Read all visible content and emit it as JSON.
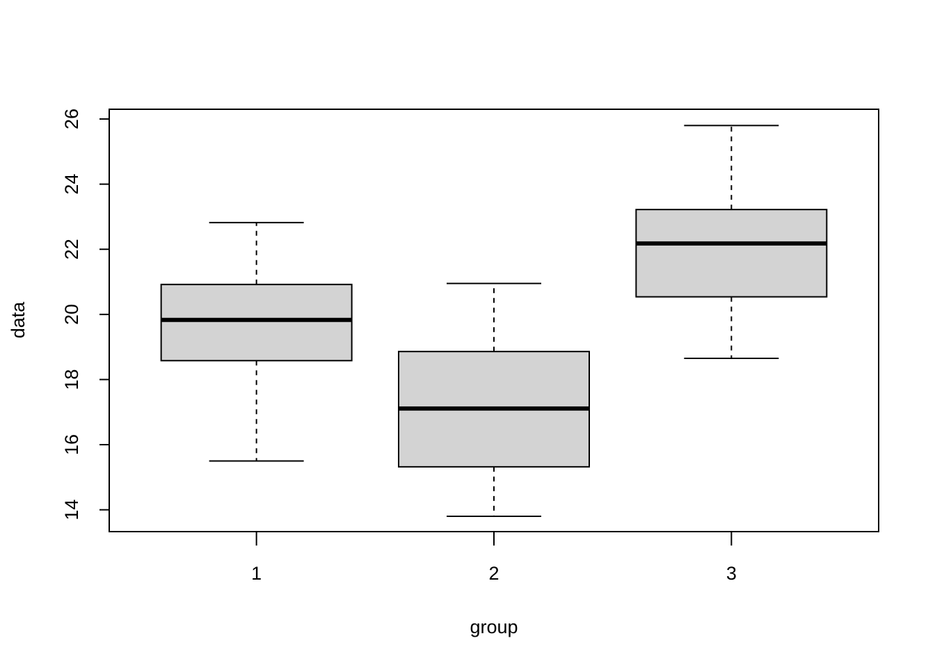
{
  "chart_data": {
    "type": "boxplot",
    "title": "",
    "xlabel": "group",
    "ylabel": "data",
    "categories": [
      "1",
      "2",
      "3"
    ],
    "boxes": [
      {
        "category": "1",
        "lower_whisker": 15.5,
        "q1": 18.58,
        "median": 19.83,
        "q3": 20.92,
        "upper_whisker": 22.82
      },
      {
        "category": "2",
        "lower_whisker": 13.8,
        "q1": 15.32,
        "median": 17.11,
        "q3": 18.86,
        "upper_whisker": 20.95
      },
      {
        "category": "3",
        "lower_whisker": 18.65,
        "q1": 20.54,
        "median": 22.18,
        "q3": 23.22,
        "upper_whisker": 25.8
      }
    ],
    "ylim": [
      13.33,
      26.3
    ],
    "yticks": [
      14,
      16,
      18,
      20,
      22,
      24,
      26
    ],
    "grid": false,
    "box_fill": "#d3d3d3",
    "line_color": "#000000"
  }
}
